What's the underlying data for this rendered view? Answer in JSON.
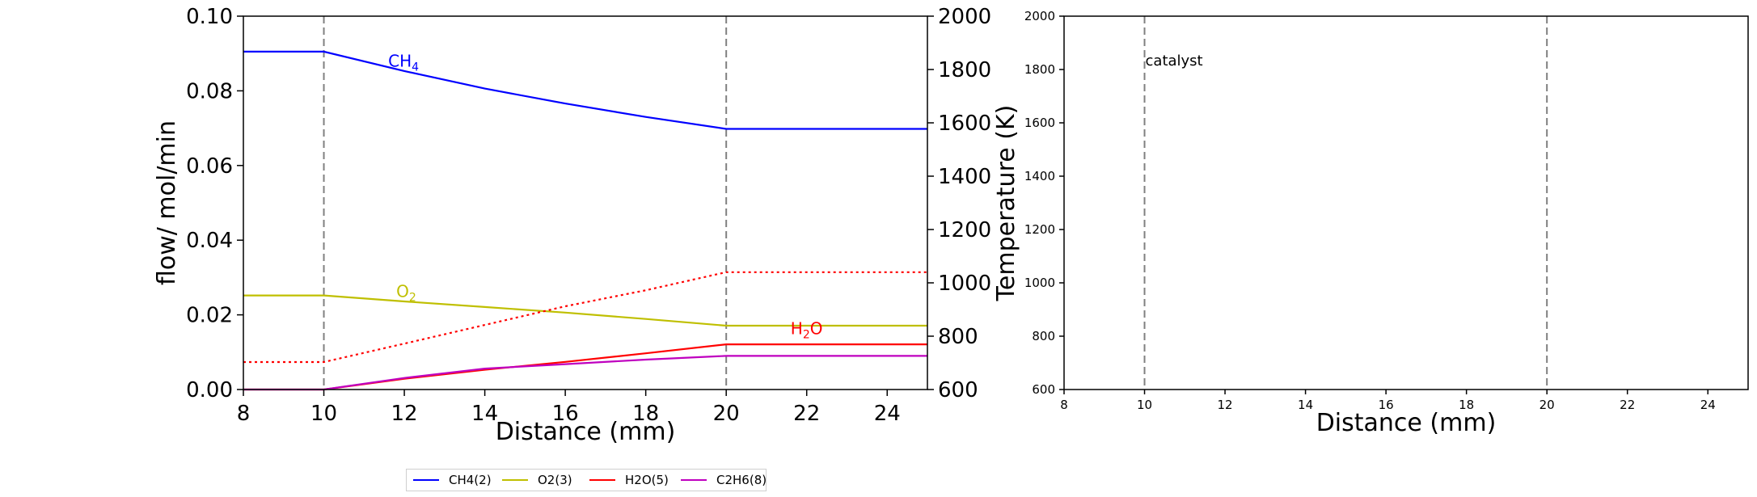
{
  "chart_data": [
    {
      "type": "line",
      "xlabel": "Distance (mm)",
      "ylabel": "flow/ mol/min",
      "y2label": "Temperature (K)",
      "xlim": [
        8,
        25
      ],
      "ylim": [
        0,
        0.1
      ],
      "y2lim": [
        600,
        2000
      ],
      "xticks": [
        "8",
        "10",
        "12",
        "14",
        "16",
        "18",
        "20",
        "22",
        "24"
      ],
      "yticks": [
        "0.00",
        "0.02",
        "0.04",
        "0.06",
        "0.08",
        "0.10"
      ],
      "y2ticks": [
        "600",
        "800",
        "1000",
        "1200",
        "1400",
        "1600",
        "1800",
        "2000"
      ],
      "vlines": [
        10,
        20
      ],
      "series": [
        {
          "name": "CH4(2)",
          "color": "#0000ff",
          "style": "solid",
          "x": [
            8,
            10,
            12,
            14,
            16,
            18,
            20,
            25
          ],
          "y": [
            0.0905,
            0.0905,
            0.0853,
            0.0806,
            0.0766,
            0.073,
            0.0698,
            0.0698
          ]
        },
        {
          "name": "O2(3)",
          "color": "#bfbf00",
          "style": "solid",
          "x": [
            8,
            10,
            12,
            14,
            16,
            18,
            20,
            25
          ],
          "y": [
            0.0252,
            0.0252,
            0.0236,
            0.0221,
            0.0206,
            0.0189,
            0.0171,
            0.0171
          ]
        },
        {
          "name": "H2O(5)",
          "color": "#ff0000",
          "style": "solid",
          "x": [
            8,
            10,
            12,
            14,
            16,
            18,
            20,
            25
          ],
          "y": [
            0.0,
            0.0,
            0.0029,
            0.0053,
            0.0074,
            0.0097,
            0.0121,
            0.0121
          ]
        },
        {
          "name": "C2H6(8)",
          "color": "#bf00bf",
          "style": "solid",
          "x": [
            8,
            10,
            12,
            14,
            16,
            18,
            20,
            25
          ],
          "y": [
            0.0,
            0.0,
            0.0031,
            0.0056,
            0.0068,
            0.008,
            0.009,
            0.009
          ]
        },
        {
          "name": "",
          "color": "#ff0000",
          "style": "dotted",
          "axis": "right",
          "x": [
            8,
            10,
            12,
            14,
            16,
            18,
            20,
            25
          ],
          "y": [
            703,
            703,
            772,
            842,
            912,
            972,
            1040,
            1040
          ]
        }
      ],
      "annotations": [
        {
          "text": "CH",
          "sub": "4",
          "x": 11.6,
          "y": 0.0865,
          "color": "#0000ff"
        },
        {
          "text": "O",
          "sub": "2",
          "x": 11.8,
          "y": 0.0248,
          "color": "#bfbf00"
        },
        {
          "text": "H",
          "sub": "2",
          "tail": "O",
          "x": 21.6,
          "y": 0.0148,
          "color": "#ff0000"
        }
      ]
    },
    {
      "type": "line",
      "xlabel": "Distance (mm)",
      "xlim": [
        8,
        25
      ],
      "ylim": [
        600,
        2000
      ],
      "xticks": [
        "8",
        "10",
        "12",
        "14",
        "16",
        "18",
        "20",
        "22",
        "24"
      ],
      "yticks": [
        "600",
        "800",
        "1000",
        "1200",
        "1400",
        "1600",
        "1800",
        "2000"
      ],
      "vlines": [
        10,
        20
      ],
      "series": [],
      "annotations": [
        {
          "text": "catalyst",
          "x": 10,
          "y": 1815,
          "color": "#000000"
        }
      ]
    }
  ],
  "legend": {
    "items": [
      {
        "label": "CH4(2)",
        "color": "#0000ff"
      },
      {
        "label": "O2(3)",
        "color": "#bfbf00"
      },
      {
        "label": "H2O(5)",
        "color": "#ff0000"
      },
      {
        "label": "C2H6(8)",
        "color": "#bf00bf"
      }
    ]
  }
}
